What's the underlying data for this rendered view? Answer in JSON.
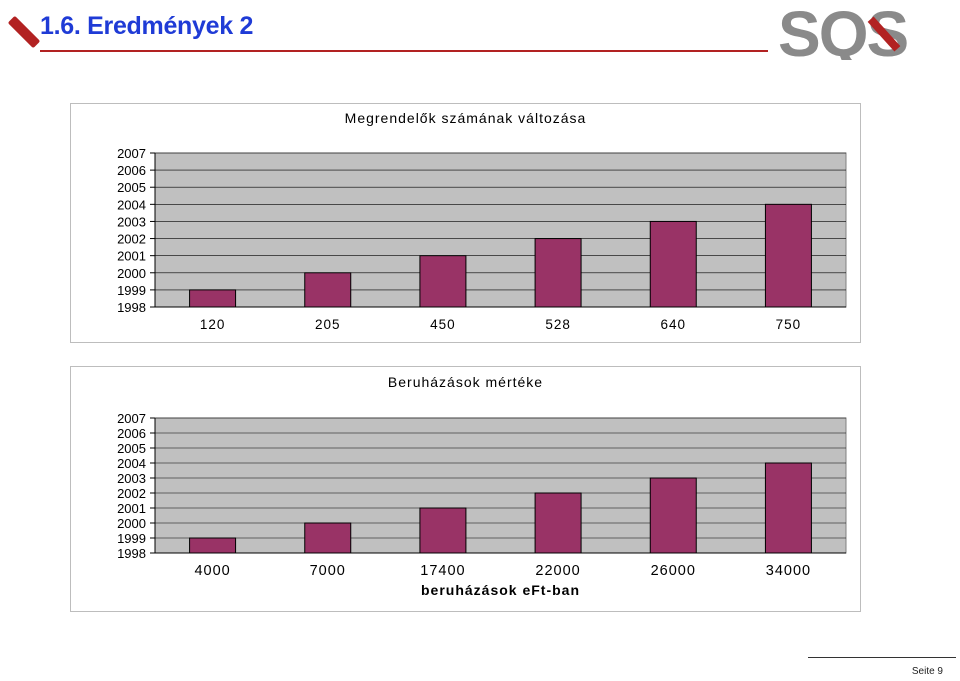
{
  "header": {
    "title": "1.6. Eredmények 2",
    "logo_text": "SQS"
  },
  "colors": {
    "bar": "#993366",
    "plot_bg": "#c0c0c0",
    "accent": "#b22222",
    "title": "#1f3bd6"
  },
  "footer": {
    "page": "Seite 9"
  },
  "chart_data": [
    {
      "type": "bar",
      "title": "Megrendelők számának változása",
      "categories": [
        "120",
        "205",
        "450",
        "528",
        "640",
        "750"
      ],
      "values": [
        1999,
        2000,
        2001,
        2002,
        2003,
        2004
      ],
      "yticks": [
        "1998",
        "1999",
        "2000",
        "2001",
        "2002",
        "2003",
        "2004",
        "2005",
        "2006",
        "2007"
      ],
      "ylim": [
        1998,
        2007
      ],
      "xlabel": "",
      "grid": true
    },
    {
      "type": "bar",
      "title": "Beruházások mértéke",
      "categories": [
        "4000",
        "7000",
        "17400",
        "22000",
        "26000",
        "34000"
      ],
      "values": [
        1999,
        2000,
        2001,
        2002,
        2003,
        2004
      ],
      "yticks": [
        "1998",
        "1999",
        "2000",
        "2001",
        "2002",
        "2003",
        "2004",
        "2005",
        "2006",
        "2007"
      ],
      "ylim": [
        1998,
        2007
      ],
      "xlabel": "beruházások eFt-ban",
      "grid": true
    }
  ]
}
